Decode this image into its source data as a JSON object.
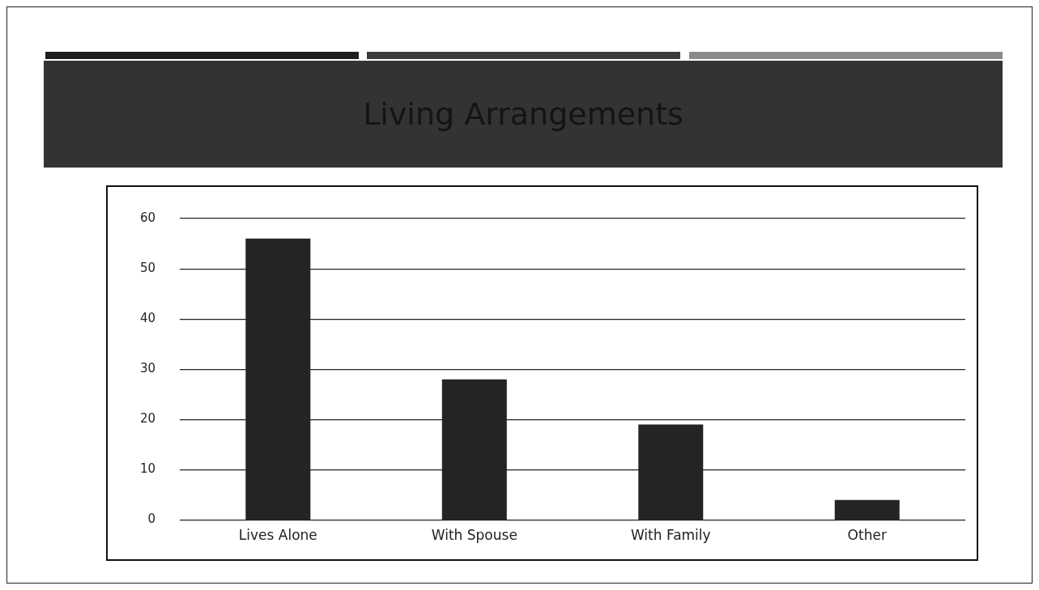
{
  "chart_data": {
    "type": "bar",
    "title": "Living Arrangements",
    "categories": [
      "Lives Alone",
      "With Spouse",
      "With Family",
      "Other"
    ],
    "values": [
      56,
      28,
      19,
      4
    ],
    "color": "#242424",
    "ylim": [
      0,
      60
    ],
    "yticks": [
      0,
      10,
      20,
      30,
      40,
      50,
      60
    ],
    "grid": "y"
  }
}
